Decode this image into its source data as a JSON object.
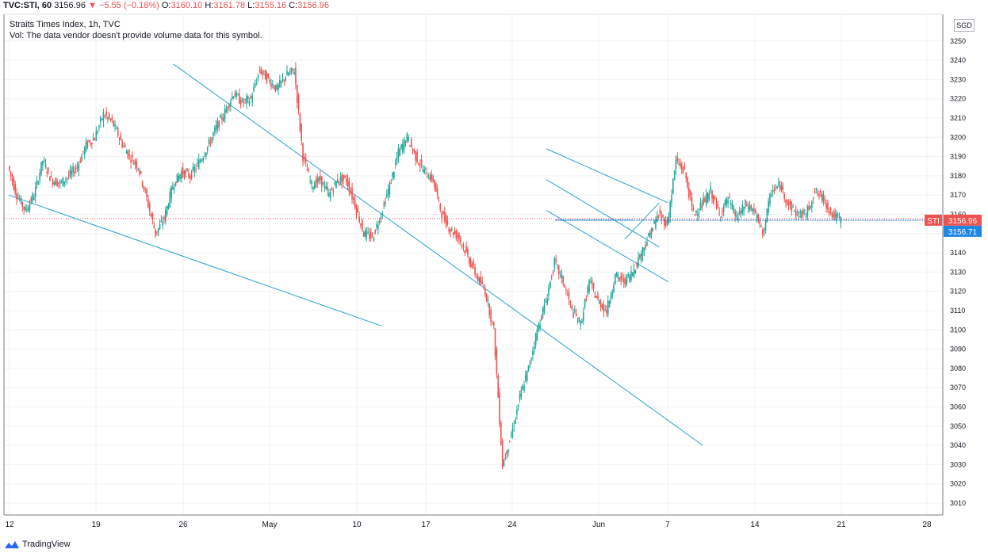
{
  "header": {
    "symbol": "TVC:STI, 60",
    "last": "3156.96",
    "change": "−5.55 (−0.18%)",
    "open_label": "O:",
    "open": "3160.10",
    "high_label": "H:",
    "high": "3161.78",
    "low_label": "L:",
    "low": "3155.16",
    "close_label": "C:",
    "close": "3156.96"
  },
  "legend": {
    "line1": "Straits Times Index, 1h, TVC",
    "line2": "Vol: The data vendor doesn't provide volume data for this symbol."
  },
  "currency": "SGD",
  "brand": "TradingView",
  "colors": {
    "up": "#26a69a",
    "down": "#ef5350",
    "trend": "#2a9fd6",
    "grid": "#eef0f3",
    "axis": "#787b86"
  },
  "chart_data": {
    "type": "candlestick",
    "ylim": [
      3000,
      3260
    ],
    "y_ticks": [
      3010,
      3020,
      3030,
      3040,
      3050,
      3060,
      3070,
      3080,
      3090,
      3100,
      3110,
      3120,
      3130,
      3140,
      3150,
      3160,
      3170,
      3180,
      3190,
      3200,
      3210,
      3220,
      3230,
      3240,
      3250
    ],
    "x_ticks": [
      "12",
      "19",
      "26",
      "May",
      "10",
      "17",
      "24",
      "Jun",
      "7",
      "14",
      "21",
      "28"
    ],
    "price_tag": {
      "label": "STI",
      "value": "3156.96"
    },
    "secondary_tag": {
      "value": "3156.71"
    },
    "price_path": [
      3185,
      3170,
      3162,
      3170,
      3188,
      3178,
      3176,
      3180,
      3185,
      3196,
      3200,
      3212,
      3208,
      3198,
      3190,
      3185,
      3168,
      3150,
      3158,
      3175,
      3182,
      3180,
      3187,
      3195,
      3205,
      3213,
      3223,
      3218,
      3220,
      3235,
      3230,
      3225,
      3232,
      3235,
      3190,
      3175,
      3178,
      3170,
      3178,
      3178,
      3165,
      3150,
      3148,
      3160,
      3175,
      3192,
      3200,
      3190,
      3182,
      3178,
      3160,
      3152,
      3148,
      3138,
      3128,
      3120,
      3100,
      3030,
      3045,
      3065,
      3080,
      3100,
      3115,
      3135,
      3125,
      3110,
      3103,
      3125,
      3115,
      3110,
      3128,
      3125,
      3130,
      3140,
      3150,
      3160,
      3155,
      3188,
      3182,
      3160,
      3165,
      3172,
      3160,
      3168,
      3158,
      3165,
      3162,
      3150,
      3172,
      3175,
      3165,
      3160,
      3160,
      3172,
      3168,
      3160,
      3157
    ],
    "trend_lines": [
      {
        "p1": [
          0,
          3170
        ],
        "p2": [
          43.0,
          3102
        ]
      },
      {
        "p1": [
          19.0,
          3238
        ],
        "p2": [
          80.0,
          3040
        ]
      },
      {
        "p1": [
          62.0,
          3194
        ],
        "p2": [
          76.0,
          3166
        ]
      },
      {
        "p1": [
          62.0,
          3178
        ],
        "p2": [
          75.0,
          3143
        ]
      },
      {
        "p1": [
          62.0,
          3162
        ],
        "p2": [
          76.0,
          3125
        ]
      },
      {
        "p1": [
          63.0,
          3157
        ],
        "p2": [
          72.0,
          3157
        ]
      },
      {
        "p1": [
          71.0,
          3147
        ],
        "p2": [
          75.0,
          3166
        ]
      }
    ]
  }
}
